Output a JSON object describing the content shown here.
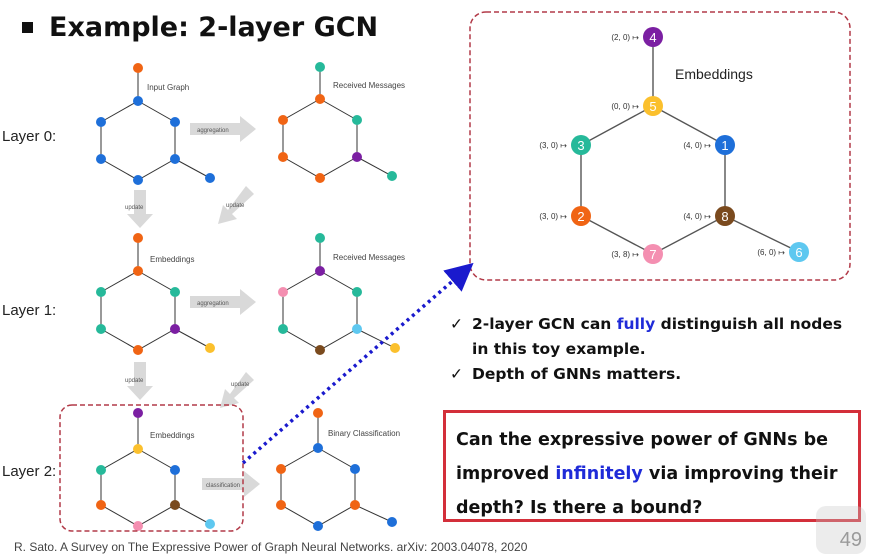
{
  "title": "Example: 2-layer GCN",
  "layers": [
    "Layer 0:",
    "Layer 1:",
    "Layer 2:"
  ],
  "panels": {
    "input_graph": "Input Graph",
    "received_messages_0": "Received Messages",
    "embeddings_1": "Embeddings",
    "received_messages_1": "Received Messages",
    "embeddings_2": "Embeddings",
    "binary_classification": "Binary Classification"
  },
  "arrows": {
    "aggregation_0": "aggregation",
    "aggregation_1": "aggregation",
    "classification": "classification",
    "update_0a": "update",
    "update_0b": "update",
    "update_1a": "update",
    "update_1b": "update"
  },
  "zoom": {
    "label": "Embeddings",
    "nodes": [
      {
        "id": "4",
        "color": "#7b1fa2",
        "tag": "(2, 0) ↦"
      },
      {
        "id": "5",
        "color": "#fbc02d",
        "tag": "(0, 0) ↦"
      },
      {
        "id": "3",
        "color": "#26b99a",
        "tag": "(3, 0) ↦"
      },
      {
        "id": "1",
        "color": "#1e6fd9",
        "tag": "(4, 0) ↦"
      },
      {
        "id": "2",
        "color": "#f06414",
        "tag": "(3, 0) ↦"
      },
      {
        "id": "8",
        "color": "#7a4a1e",
        "tag": "(4, 0) ↦"
      },
      {
        "id": "7",
        "color": "#f48fb1",
        "tag": "(3, 8) ↦"
      },
      {
        "id": "6",
        "color": "#5ec8f0",
        "tag": "(6, 0) ↦"
      }
    ]
  },
  "checks": {
    "line1_pre": "2-layer GCN can ",
    "line1_hl": "fully",
    "line1_post": " distinguish all nodes",
    "line2": "in this toy example.",
    "line3": "Depth of GNNs matters."
  },
  "question": {
    "line1": "Can the expressive power of GNNs be",
    "line2_pre": "improved ",
    "line2_hl": "infinitely",
    "line2_post": " via improving their",
    "line3": "depth? Is there a bound?"
  },
  "citation": "R. Sato. A Survey on The Expressive Power of Graph Neural Networks. arXiv: 2003.04078, 2020",
  "page_number": "49",
  "colors": {
    "accent_blue": "#1f2bd8",
    "box_red": "#d32f3a",
    "dashed_red": "#b23a48",
    "dotted_arrow": "#1a1acd"
  }
}
